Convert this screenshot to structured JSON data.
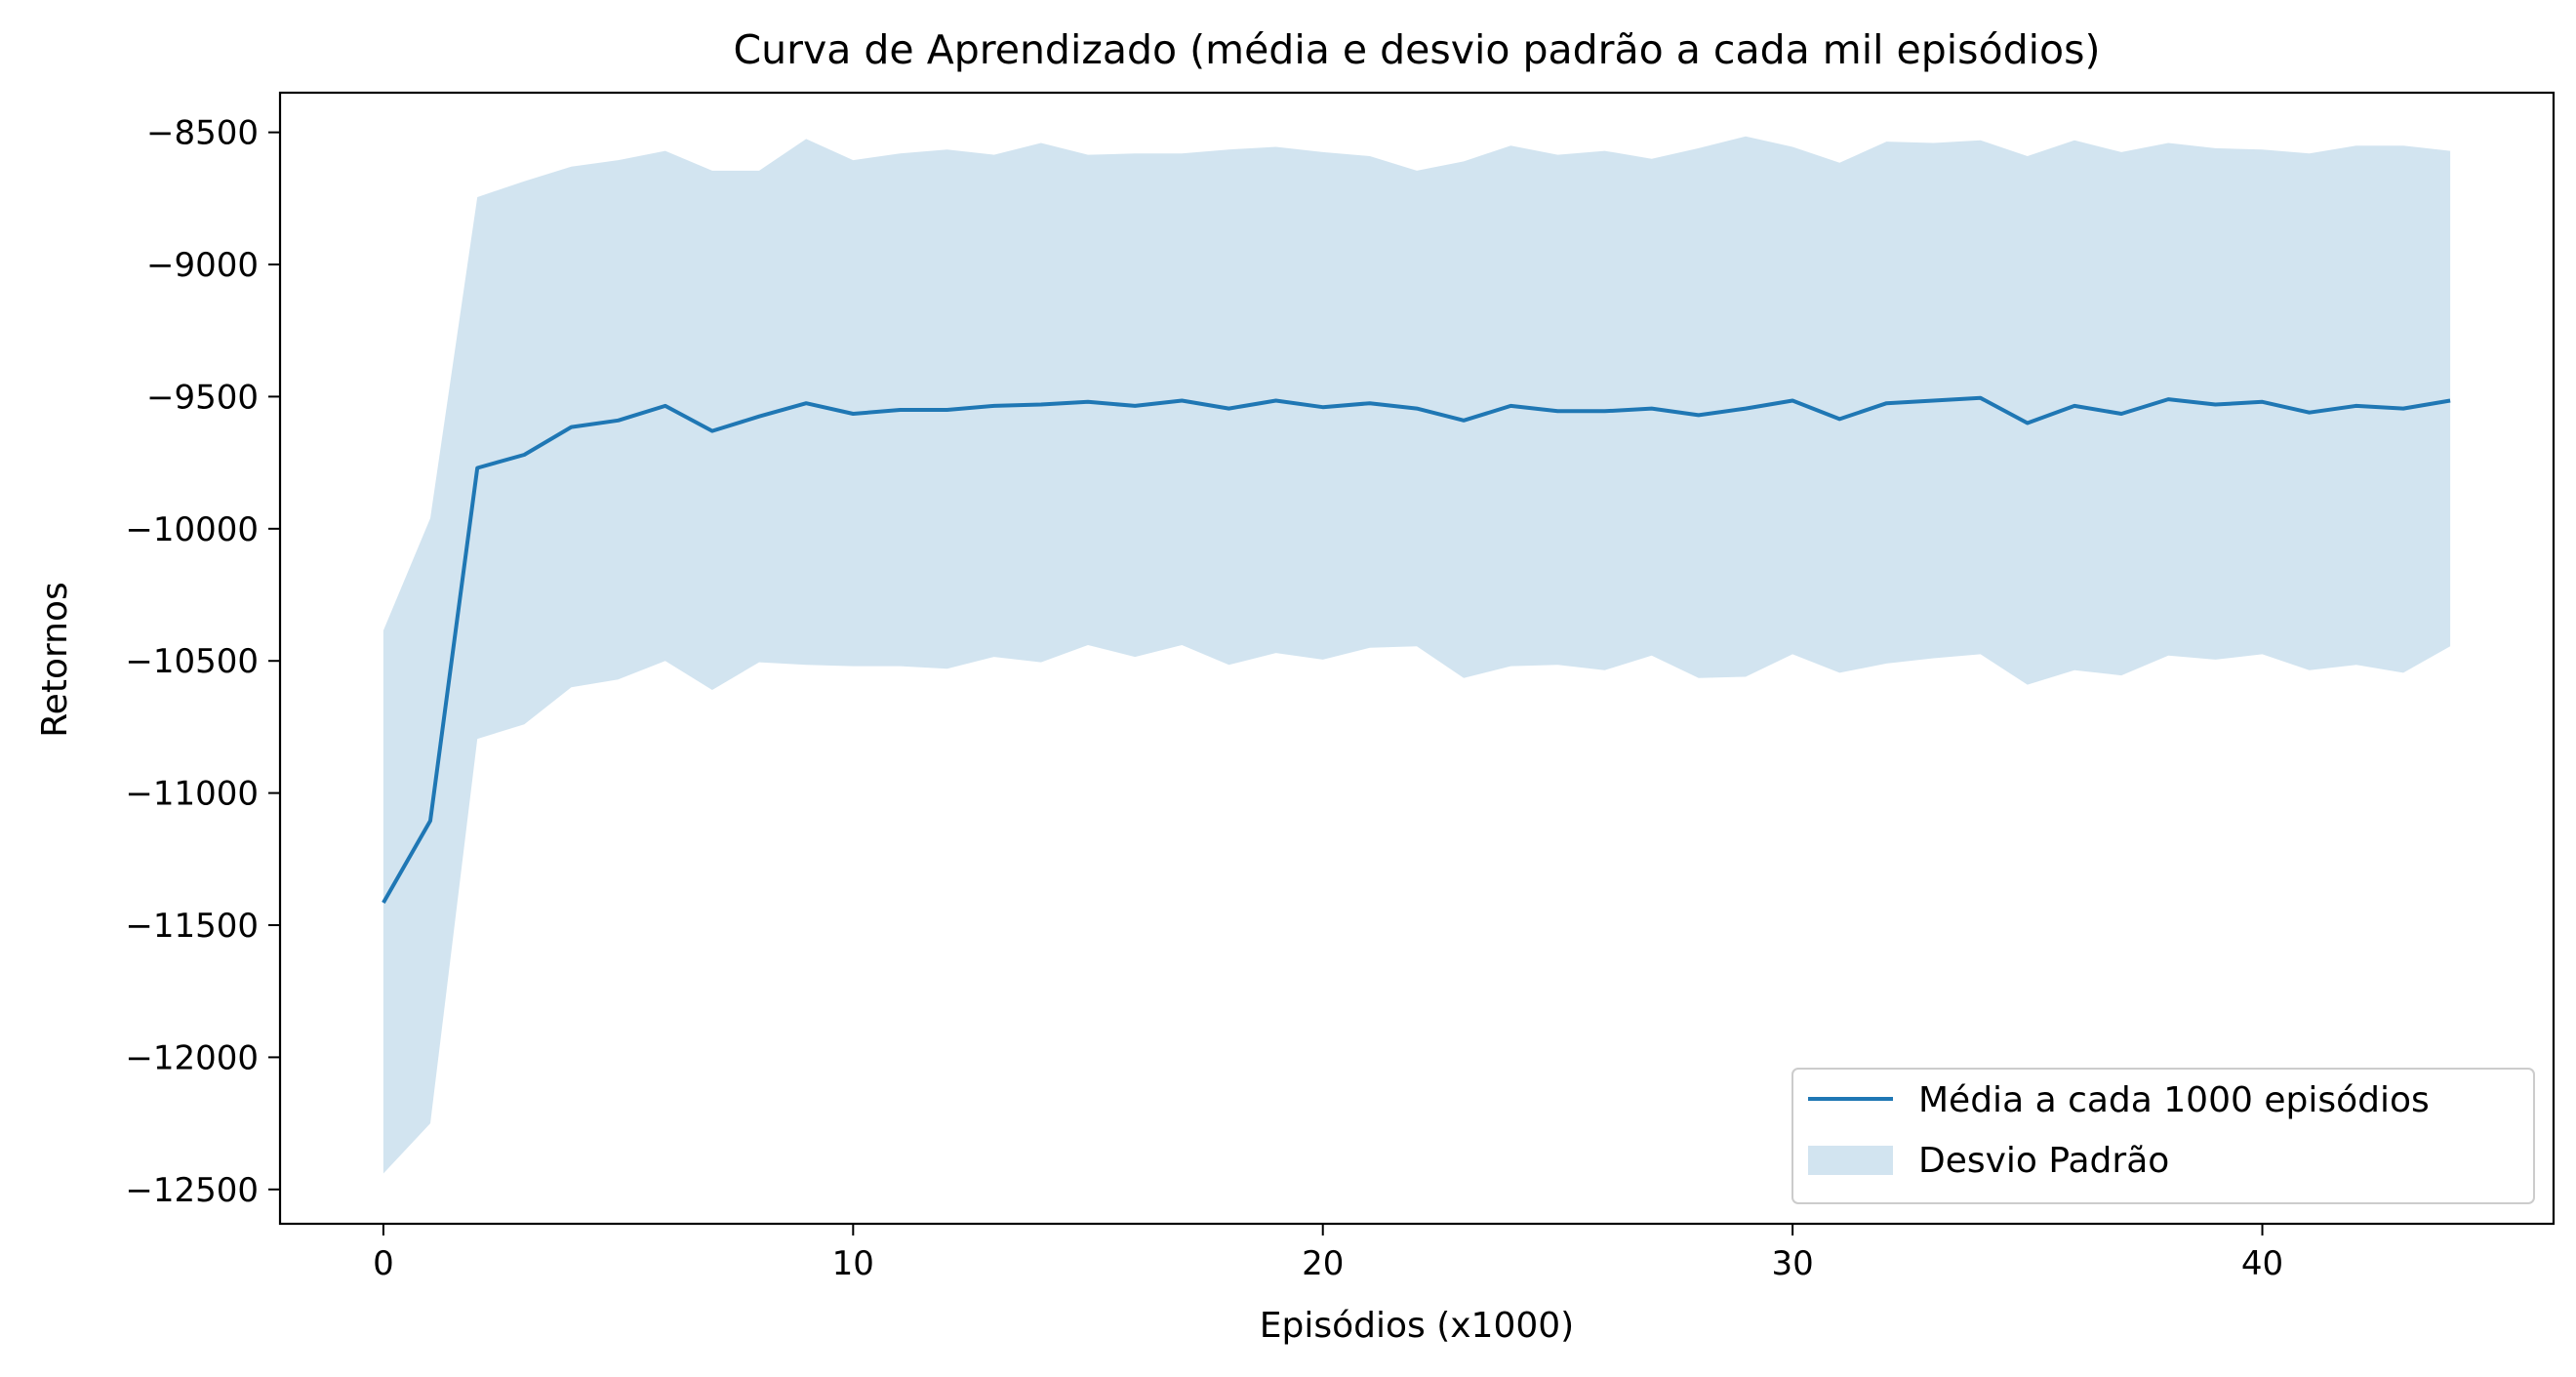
{
  "chart_data": {
    "type": "line",
    "title": "Curva de Aprendizado (média e desvio padrão a cada mil episódios)",
    "xlabel": "Episódios (x1000)",
    "ylabel": "Retornos",
    "xlim": [
      -2.2,
      46.2
    ],
    "ylim": [
      -12630,
      -8350
    ],
    "x_ticks": [
      0,
      10,
      20,
      30,
      40
    ],
    "x_tick_labels": [
      "0",
      "10",
      "20",
      "30",
      "40"
    ],
    "y_ticks": [
      -8500,
      -9000,
      -9500,
      -10000,
      -10500,
      -11000,
      -11500,
      -12000,
      -12500
    ],
    "y_tick_labels": [
      "−8500",
      "−9000",
      "−9500",
      "−10000",
      "−10500",
      "−11000",
      "−11500",
      "−12000",
      "−12500"
    ],
    "grid": false,
    "legend_position": "lower-right",
    "legend": [
      "Média a cada 1000 episódios",
      "Desvio Padrão"
    ],
    "colors": {
      "line": "#1f77b4",
      "band": "#1f77b4",
      "band_opacity": 0.2
    },
    "x": [
      0,
      1,
      2,
      3,
      4,
      5,
      6,
      7,
      8,
      9,
      10,
      11,
      12,
      13,
      14,
      15,
      16,
      17,
      18,
      19,
      20,
      21,
      22,
      23,
      24,
      25,
      26,
      27,
      28,
      29,
      30,
      31,
      32,
      33,
      34,
      35,
      36,
      37,
      38,
      39,
      40,
      41,
      42,
      43,
      44
    ],
    "series": [
      {
        "name": "Média a cada 1000 episódios",
        "type": "line",
        "values": [
          -11415,
          -11105,
          -9770,
          -9720,
          -9615,
          -9590,
          -9535,
          -9630,
          -9575,
          -9525,
          -9565,
          -9550,
          -9550,
          -9535,
          -9530,
          -9520,
          -9535,
          -9515,
          -9545,
          -9515,
          -9540,
          -9525,
          -9545,
          -9590,
          -9535,
          -9555,
          -9555,
          -9545,
          -9570,
          -9545,
          -9515,
          -9585,
          -9525,
          -9515,
          -9505,
          -9600,
          -9535,
          -9565,
          -9510,
          -9530,
          -9520,
          -9560,
          -9535,
          -9545,
          -9515
        ]
      },
      {
        "name": "Desvio Padrão",
        "type": "band",
        "upper": [
          -10385,
          -9960,
          -8745,
          -8685,
          -8630,
          -8605,
          -8570,
          -8645,
          -8645,
          -8525,
          -8605,
          -8580,
          -8565,
          -8585,
          -8540,
          -8585,
          -8580,
          -8580,
          -8565,
          -8555,
          -8575,
          -8590,
          -8645,
          -8610,
          -8550,
          -8585,
          -8570,
          -8600,
          -8560,
          -8515,
          -8555,
          -8615,
          -8535,
          -8540,
          -8530,
          -8590,
          -8530,
          -8575,
          -8540,
          -8560,
          -8565,
          -8580,
          -8550,
          -8550,
          -8570
        ],
        "lower": [
          -12440,
          -12250,
          -10795,
          -10740,
          -10600,
          -10570,
          -10500,
          -10610,
          -10505,
          -10515,
          -10520,
          -10520,
          -10530,
          -10485,
          -10505,
          -10440,
          -10485,
          -10440,
          -10515,
          -10470,
          -10495,
          -10450,
          -10445,
          -10565,
          -10520,
          -10515,
          -10535,
          -10480,
          -10565,
          -10560,
          -10475,
          -10545,
          -10510,
          -10490,
          -10475,
          -10590,
          -10535,
          -10555,
          -10480,
          -10495,
          -10475,
          -10535,
          -10515,
          -10545,
          -10445
        ]
      }
    ]
  }
}
